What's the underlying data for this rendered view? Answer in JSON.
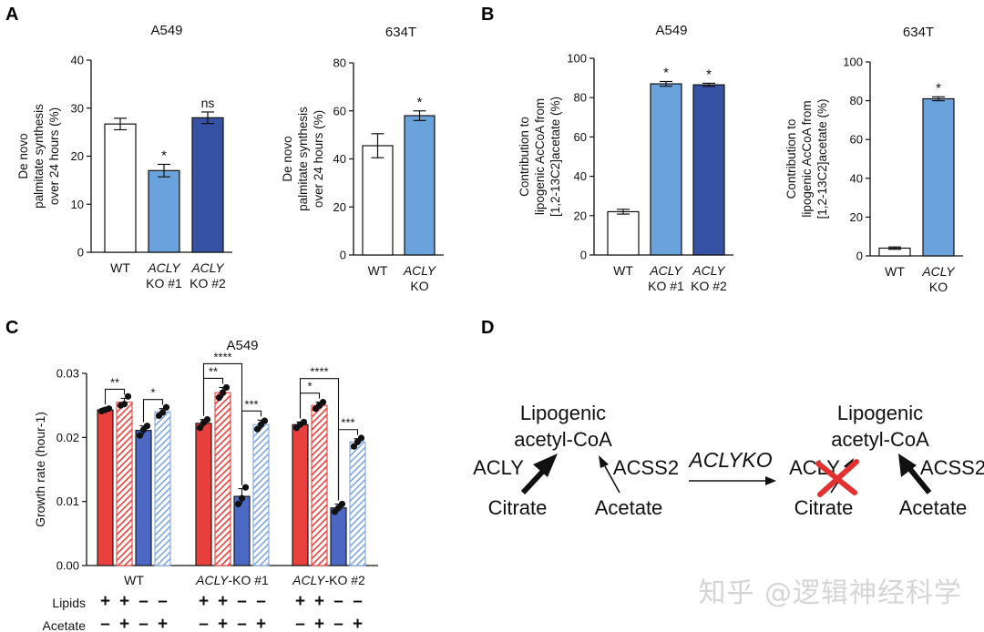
{
  "watermark": "知乎 @逻辑神经科学",
  "colors": {
    "white_bar": "#ffffff",
    "light_blue": "#6aa2db",
    "dark_blue": "#3552a5",
    "red": "#e8403c",
    "blue": "#4d68c3",
    "light_blue_hatch": "#7ea6e0",
    "axis": "#111111",
    "red_x": "#e4312f"
  },
  "chart_data": [
    {
      "panel": "A",
      "title": "A549",
      "type": "bar",
      "ylabel": [
        "De novo",
        "palmitate synthesis",
        "over 24 hours (%)"
      ],
      "ylim": [
        0,
        40
      ],
      "yticks": [
        0,
        10,
        20,
        30,
        40
      ],
      "categories": [
        [
          "WT"
        ],
        [
          "ACLY",
          "KO #1"
        ],
        [
          "ACLY",
          "KO #2"
        ]
      ],
      "values": [
        26.7,
        17.0,
        28.0
      ],
      "errors": [
        1.2,
        1.3,
        1.2
      ],
      "annotations": [
        "",
        "*",
        "ns"
      ],
      "colors": [
        "white_bar",
        "light_blue",
        "dark_blue"
      ]
    },
    {
      "panel": "",
      "title": "634T",
      "type": "bar",
      "ylabel": [
        "De novo",
        "palmitate synthesis",
        "over 24 hours (%)"
      ],
      "ylim": [
        0,
        80
      ],
      "yticks": [
        0,
        20,
        40,
        60,
        80
      ],
      "categories": [
        [
          "WT"
        ],
        [
          "ACLY",
          "KO"
        ]
      ],
      "values": [
        45.5,
        58.0
      ],
      "errors": [
        5.0,
        2.0
      ],
      "annotations": [
        "",
        "*"
      ],
      "colors": [
        "white_bar",
        "light_blue"
      ]
    },
    {
      "panel": "B",
      "title": "A549",
      "type": "bar",
      "ylabel": [
        "Contribution to",
        "lipogenic AcCoA from",
        "[1,2-13C2]acetate (%)"
      ],
      "ylim": [
        0,
        100
      ],
      "yticks": [
        0,
        20,
        40,
        60,
        80,
        100
      ],
      "categories": [
        [
          "WT"
        ],
        [
          "ACLY",
          "KO #1"
        ],
        [
          "ACLY",
          "KO #2"
        ]
      ],
      "values": [
        22.0,
        87.0,
        86.5
      ],
      "errors": [
        1.2,
        1.2,
        0.8
      ],
      "annotations": [
        "",
        "*",
        "*"
      ],
      "colors": [
        "white_bar",
        "light_blue",
        "dark_blue"
      ]
    },
    {
      "panel": "",
      "title": "634T",
      "type": "bar",
      "ylabel": [
        "Contribution to",
        "lipogenic AcCoA from",
        "[1,2-13C2]acetate (%)"
      ],
      "ylim": [
        0,
        100
      ],
      "yticks": [
        0,
        20,
        40,
        60,
        80,
        100
      ],
      "categories": [
        [
          "WT"
        ],
        [
          "ACLY",
          "KO"
        ]
      ],
      "values": [
        4.0,
        81.0
      ],
      "errors": [
        0.6,
        1.0
      ],
      "annotations": [
        "",
        "*"
      ],
      "colors": [
        "white_bar",
        "light_blue"
      ]
    },
    {
      "panel": "C",
      "title": "A549",
      "type": "bar",
      "ylabel": "Growth rate (hour-1)",
      "ylim": [
        0,
        0.03
      ],
      "yticks": [
        "0.00",
        "0.01",
        "0.02",
        "0.03"
      ],
      "row_labels": [
        "Lipids",
        "Acetate"
      ],
      "lipids_signs": [
        "+",
        "+",
        "–",
        "–"
      ],
      "acetate_signs": [
        "–",
        "+",
        "–",
        "+"
      ],
      "groups": [
        {
          "label": "WT",
          "values": [
            0.0243,
            0.0255,
            0.0211,
            0.024
          ],
          "errors": [
            0.0003,
            0.0006,
            0.0007,
            0.0005
          ]
        },
        {
          "label": "ACLY-KO #1",
          "values": [
            0.0222,
            0.027,
            0.0108,
            0.022
          ],
          "errors": [
            0.0006,
            0.0008,
            0.0012,
            0.0007
          ]
        },
        {
          "label": "ACLY-KO #2",
          "values": [
            0.022,
            0.025,
            0.009,
            0.0193
          ],
          "errors": [
            0.0004,
            0.0005,
            0.0006,
            0.0005
          ]
        }
      ],
      "points": [
        [
          [
            0.0241,
            0.0243,
            0.0245
          ],
          [
            0.025,
            0.0252,
            0.0264
          ],
          [
            0.0203,
            0.0212,
            0.0218
          ],
          [
            0.0234,
            0.0239,
            0.0247
          ]
        ],
        [
          [
            0.0215,
            0.0223,
            0.0228
          ],
          [
            0.0262,
            0.027,
            0.0278
          ],
          [
            0.0096,
            0.0105,
            0.0122
          ],
          [
            0.0213,
            0.022,
            0.0226
          ]
        ],
        [
          [
            0.0215,
            0.022,
            0.0224
          ],
          [
            0.0245,
            0.025,
            0.0255
          ],
          [
            0.0084,
            0.009,
            0.0096
          ],
          [
            0.0186,
            0.0193,
            0.0199
          ]
        ]
      ],
      "bar_styles": [
        "red",
        "red_hatched",
        "blue",
        "blue_hatched"
      ],
      "significance": [
        {
          "group": 0,
          "from": 0,
          "to": 1,
          "label": "**",
          "level": 0
        },
        {
          "group": 0,
          "from": 2,
          "to": 3,
          "label": "*",
          "level": 0
        },
        {
          "group": 1,
          "from": 0,
          "to": 1,
          "label": "**",
          "level": 0
        },
        {
          "group": 1,
          "from": 0,
          "to": 2,
          "label": "****",
          "level": 1
        },
        {
          "group": 1,
          "from": 2,
          "to": 3,
          "label": "***",
          "level": 0
        },
        {
          "group": 2,
          "from": 0,
          "to": 1,
          "label": "*",
          "level": 0
        },
        {
          "group": 2,
          "from": 0,
          "to": 2,
          "label": "****",
          "level": 1
        },
        {
          "group": 2,
          "from": 2,
          "to": 3,
          "label": "***",
          "level": 0
        }
      ]
    }
  ],
  "diagram": {
    "panel": "D",
    "left": {
      "product_line1": "Lipogenic",
      "product_line2": "acetyl-CoA",
      "enzyme_left": "ACLY",
      "enzyme_right": "ACSS2",
      "substrate_left": "Citrate",
      "substrate_right": "Acetate"
    },
    "transition": "ACLYKO",
    "right": {
      "product_line1": "Lipogenic",
      "product_line2": "acetyl-CoA",
      "enzyme_left": "ACLY",
      "enzyme_right": "ACSS2",
      "substrate_left": "Citrate",
      "substrate_right": "Acetate"
    }
  }
}
